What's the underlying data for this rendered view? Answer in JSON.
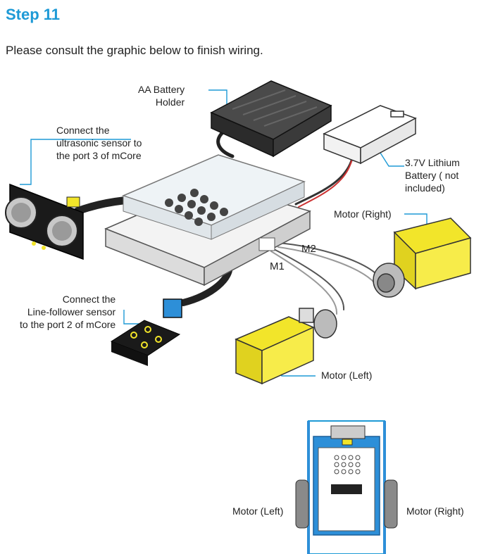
{
  "header": {
    "step_title": "Step 11",
    "intro": "Please consult the graphic below to finish wiring."
  },
  "diagram": {
    "battery_holder": {
      "line1": "AA Battery",
      "line2": "Holder"
    },
    "lithium": {
      "line1": "3.7V Lithium",
      "line2": "Battery ( not",
      "line3": "included)"
    },
    "ultrasonic": {
      "line1": "Connect the",
      "line2": "ultrasonic sensor to",
      "line3": "the port 3 of mCore"
    },
    "motor_right": "Motor (Right)",
    "port_m2": "M2",
    "port_m1": "M1",
    "line_follower": {
      "line1": "Connect the",
      "line2": "Line-follower sensor",
      "line3": "to the port 2 of mCore"
    },
    "motor_left": "Motor (Left)"
  },
  "bottom_view": {
    "motor_left": "Motor (Left)",
    "motor_right": "Motor (Right)"
  },
  "colors": {
    "accent_blue": "#1e9ad6",
    "motor_yellow": "#f2e52a",
    "board_blue": "#2d8fd8"
  }
}
